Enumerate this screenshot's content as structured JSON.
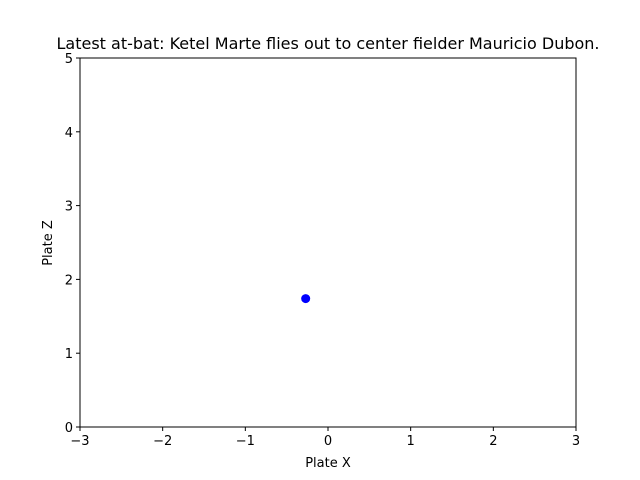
{
  "chart_data": {
    "type": "scatter",
    "title": "Latest at-bat: Ketel Marte flies out to center fielder Mauricio Dubon.",
    "xlabel": "Plate X",
    "ylabel": "Plate Z",
    "xlim": [
      -3,
      3
    ],
    "ylim": [
      0,
      5
    ],
    "xticks": [
      -3,
      -2,
      -1,
      0,
      1,
      2,
      3
    ],
    "xtick_labels": [
      "−3",
      "−2",
      "−1",
      "0",
      "1",
      "2",
      "3"
    ],
    "yticks": [
      0,
      1,
      2,
      3,
      4,
      5
    ],
    "ytick_labels": [
      "0",
      "1",
      "2",
      "3",
      "4",
      "5"
    ],
    "grid": false,
    "series": [
      {
        "points": [
          {
            "x": -0.27,
            "y": 1.74
          }
        ],
        "color": "#0000ff"
      }
    ]
  }
}
